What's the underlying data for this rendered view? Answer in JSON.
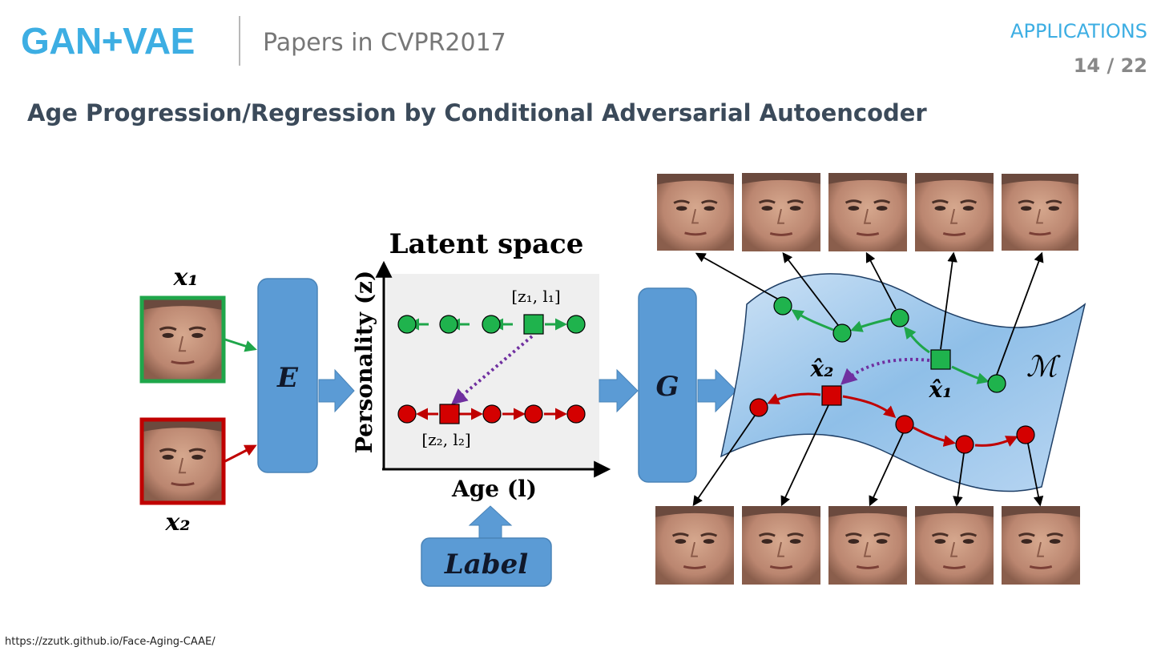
{
  "header": {
    "brand": "GAN+VAE",
    "subtitle": "Papers in CVPR2017",
    "section": "APPLICATIONS",
    "page_indicator": "14 / 22"
  },
  "slide": {
    "title": "Age Progression/Regression by Conditional Adversarial Autoencoder"
  },
  "diagram": {
    "input_top_label": "x₁",
    "input_bottom_label": "x₂",
    "encoder_label": "E",
    "generator_label": "G",
    "latent_title": "Latent space",
    "y_axis_label": "Personality (z)",
    "x_axis_label": "Age (l)",
    "label_box": "Label",
    "latent_point_top": "[z₁, l₁]",
    "latent_point_bottom": "[z₂, l₂]",
    "manifold_label": "ℳ",
    "recon_top_label": "x̂₁",
    "recon_bottom_label": "x̂₂"
  },
  "colors": {
    "accent_blue": "#3daee3",
    "block_blue": "#5b9bd5",
    "green": "#1fa64a",
    "red": "#c00000",
    "purple": "#7030a0"
  },
  "footer": {
    "source_url": "https://zzutk.github.io/Face-Aging-CAAE/"
  }
}
